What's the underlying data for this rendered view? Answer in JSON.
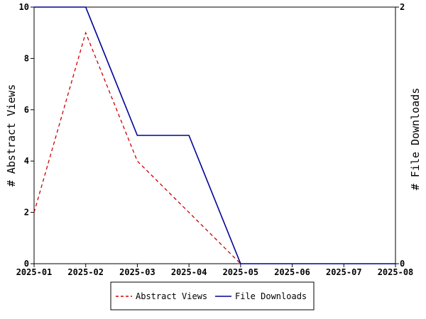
{
  "chart_data": {
    "type": "line",
    "x": [
      "2025-01",
      "2025-02",
      "2025-03",
      "2025-04",
      "2025-05",
      "2025-06",
      "2025-07",
      "2025-08"
    ],
    "y_left": {
      "label": "# Abstract Views",
      "range": [
        0,
        10
      ],
      "ticks": [
        "0",
        "2",
        "4",
        "6",
        "8",
        "10"
      ]
    },
    "y_right": {
      "label": "# File Downloads",
      "range": [
        0,
        2
      ],
      "ticks": [
        "0",
        "2"
      ]
    },
    "series": [
      {
        "name": "Abstract Views",
        "axis": "left",
        "color": "#cc0000",
        "style": "dashed",
        "x": [
          "2025-01",
          "2025-02",
          "2025-03",
          "2025-04",
          "2025-05"
        ],
        "values": [
          2,
          9,
          4,
          2,
          0
        ]
      },
      {
        "name": "File Downloads",
        "axis": "right",
        "color": "#000099",
        "style": "solid",
        "x": [
          "2025-01",
          "2025-02",
          "2025-03",
          "2025-04",
          "2025-05",
          "2025-06",
          "2025-07",
          "2025-08"
        ],
        "values": [
          2,
          2,
          1,
          1,
          0,
          0,
          0,
          0
        ]
      }
    ],
    "grid": false,
    "legend": "bottom"
  }
}
